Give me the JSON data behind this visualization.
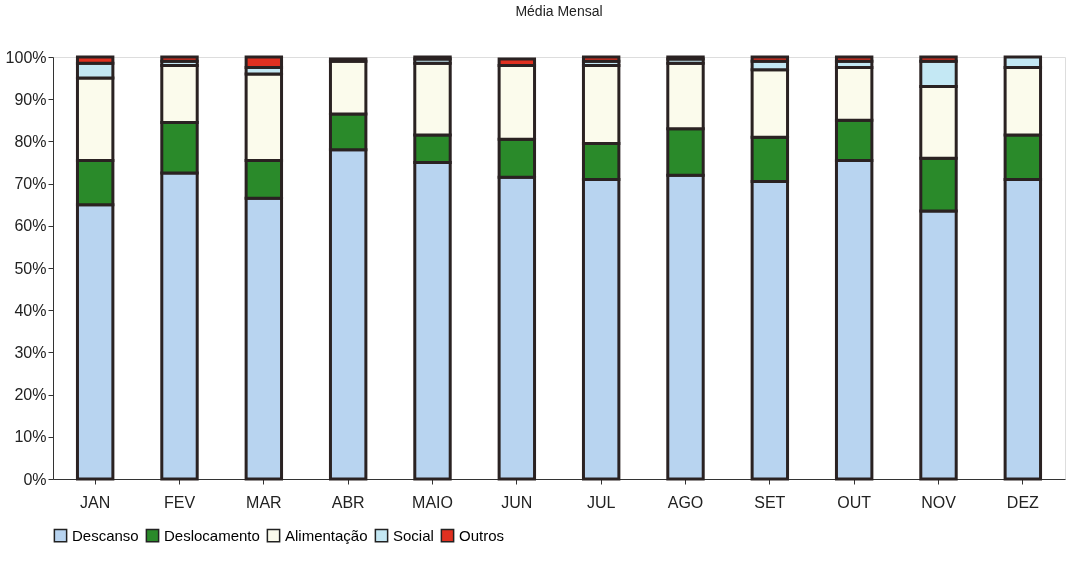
{
  "chart_data": {
    "type": "bar",
    "title": "Média Mensal",
    "stacked": true,
    "categories": [
      "JAN",
      "FEV",
      "MAR",
      "ABR",
      "MAIO",
      "JUN",
      "JUL",
      "AGO",
      "SET",
      "OUT",
      "NOV",
      "DEZ"
    ],
    "series": [
      {
        "name": "Descanso",
        "color": "#b8d4f0",
        "values": [
          65,
          72.5,
          66.5,
          78,
          75,
          71.5,
          71,
          72,
          70.5,
          75.5,
          63.5,
          71
        ]
      },
      {
        "name": "Deslocamento",
        "color": "#2a8a2a",
        "values": [
          10.5,
          12,
          9,
          8.5,
          6.5,
          9,
          8.5,
          11,
          10.5,
          9.5,
          12.5,
          10.5
        ]
      },
      {
        "name": "Alimentação",
        "color": "#fbfbec",
        "values": [
          19.5,
          13.5,
          20.5,
          12.5,
          17,
          17.5,
          18.5,
          15.5,
          16,
          12.5,
          17,
          16
        ]
      },
      {
        "name": "Social",
        "color": "#c4e8f4",
        "values": [
          3.5,
          1,
          1.5,
          null,
          1,
          null,
          1,
          1,
          2,
          1.5,
          6,
          2.5
        ]
      },
      {
        "name": "Outros",
        "color": "#e03020",
        "values": [
          1.5,
          1,
          2.5,
          0.5,
          0.5,
          1.5,
          1,
          0.5,
          1,
          1,
          1,
          0
        ]
      }
    ],
    "ylim": [
      0,
      100
    ],
    "yticks": [
      {
        "value": 0,
        "label": "0%"
      },
      {
        "value": 10,
        "label": "10%"
      },
      {
        "value": 20,
        "label": "20%"
      },
      {
        "value": 30,
        "label": "30%"
      },
      {
        "value": 40,
        "label": "40%"
      },
      {
        "value": 50,
        "label": "50%"
      },
      {
        "value": 60,
        "label": "60%"
      },
      {
        "value": 70,
        "label": "70%"
      },
      {
        "value": 80,
        "label": "80%"
      },
      {
        "value": 90,
        "label": "90%"
      },
      {
        "value": 100,
        "label": "100%"
      }
    ],
    "legend": "bottom",
    "grid": false
  }
}
